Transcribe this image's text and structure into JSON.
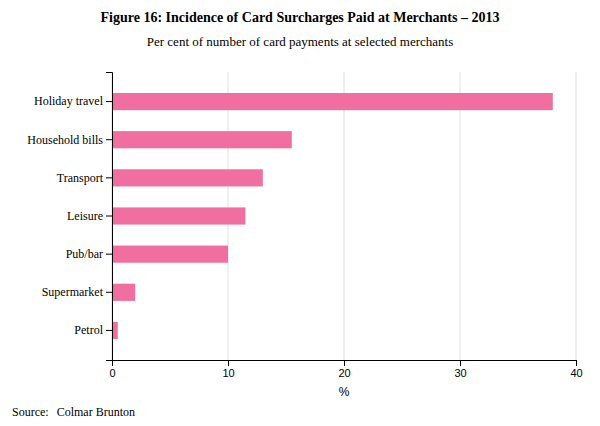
{
  "chart_data": {
    "type": "bar",
    "orientation": "horizontal",
    "title": "Figure 16: Incidence of Card Surcharges Paid at Merchants – 2013",
    "subtitle": "Per cent of number of card payments at selected merchants",
    "categories": [
      "Petrol",
      "Supermarket",
      "Pub/bar",
      "Leisure",
      "Transport",
      "Household bills",
      "Holiday travel"
    ],
    "values": [
      0.5,
      2.0,
      10.0,
      11.5,
      13.0,
      15.5,
      38.0
    ],
    "color": "#F06EA0",
    "xlabel": "%",
    "xlim": [
      0,
      40
    ],
    "xticks": [
      0,
      10,
      20,
      30,
      40
    ],
    "grid": true,
    "annotations": [
      "Source:",
      "Colmar Brunton"
    ]
  }
}
